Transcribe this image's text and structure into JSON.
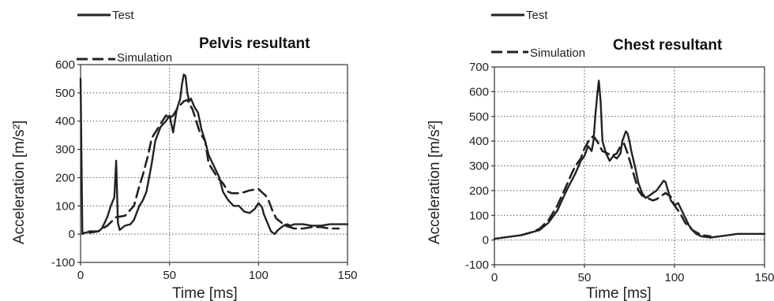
{
  "chart_data": [
    {
      "type": "line",
      "title": "Pelvis resultant",
      "xlabel": "Time [ms]",
      "ylabel": "Acceleration [m/s²]",
      "xlim": [
        0,
        150
      ],
      "ylim": [
        -100,
        600
      ],
      "xticks": [
        0,
        50,
        100,
        150
      ],
      "yticks": [
        -100,
        0,
        100,
        200,
        300,
        400,
        500,
        600
      ],
      "xtick_labels": [
        "0",
        "50",
        "100",
        "150"
      ],
      "ytick_labels": [
        "-100",
        "0",
        "100",
        "200",
        "300",
        "400",
        "500",
        "600"
      ],
      "grid": true,
      "legend_position": "top-left, outside",
      "series": [
        {
          "name": "Test",
          "style": "solid",
          "x": [
            0,
            1,
            2,
            3,
            5,
            10,
            12,
            15,
            17,
            19,
            20,
            21,
            22,
            23,
            25,
            28,
            30,
            33,
            35,
            37,
            40,
            42,
            45,
            48,
            50,
            52,
            54,
            56,
            57,
            58,
            59,
            60,
            61,
            62,
            64,
            66,
            68,
            70,
            72,
            75,
            78,
            80,
            83,
            86,
            89,
            92,
            95,
            98,
            100,
            102,
            103,
            105,
            107,
            109,
            111,
            114,
            116,
            118,
            120,
            125,
            130,
            135,
            140,
            145,
            150
          ],
          "y": [
            550,
            0,
            5,
            5,
            10,
            10,
            20,
            60,
            100,
            130,
            260,
            40,
            15,
            20,
            30,
            35,
            50,
            100,
            120,
            150,
            250,
            330,
            380,
            400,
            420,
            360,
            440,
            480,
            530,
            565,
            560,
            500,
            470,
            480,
            450,
            430,
            370,
            330,
            280,
            240,
            200,
            150,
            120,
            100,
            100,
            80,
            75,
            90,
            110,
            95,
            70,
            40,
            10,
            0,
            15,
            30,
            35,
            30,
            35,
            35,
            30,
            30,
            35,
            35,
            35
          ]
        },
        {
          "name": "Simulation",
          "style": "dashed",
          "x": [
            5,
            10,
            15,
            20,
            25,
            30,
            33,
            35,
            38,
            40,
            43,
            45,
            48,
            50,
            52,
            55,
            58,
            60,
            63,
            65,
            67,
            70,
            72,
            75,
            77,
            80,
            83,
            85,
            90,
            95,
            100,
            105,
            108,
            110,
            115,
            120,
            125,
            130,
            135,
            140,
            145
          ],
          "y": [
            5,
            10,
            30,
            60,
            65,
            100,
            170,
            210,
            280,
            340,
            370,
            390,
            420,
            410,
            420,
            450,
            470,
            475,
            440,
            400,
            360,
            330,
            250,
            220,
            200,
            180,
            150,
            145,
            145,
            155,
            160,
            130,
            80,
            55,
            30,
            20,
            20,
            25,
            25,
            20,
            20
          ]
        }
      ]
    },
    {
      "type": "line",
      "title": "Chest resultant",
      "xlabel": "Time [ms]",
      "ylabel": "Acceleration [m/s²]",
      "xlim": [
        0,
        150
      ],
      "ylim": [
        -100,
        700
      ],
      "xticks": [
        0,
        50,
        100,
        150
      ],
      "yticks": [
        -100,
        0,
        100,
        200,
        300,
        400,
        500,
        600,
        700
      ],
      "xtick_labels": [
        "0",
        "50",
        "100",
        "150"
      ],
      "ytick_labels": [
        "-100",
        "0",
        "100",
        "200",
        "300",
        "400",
        "500",
        "600",
        "700"
      ],
      "grid": true,
      "legend_position": "top-left, outside",
      "series": [
        {
          "name": "Test",
          "style": "solid",
          "x": [
            0,
            5,
            10,
            15,
            20,
            25,
            30,
            35,
            40,
            45,
            48,
            50,
            52,
            54,
            55,
            56,
            57,
            58,
            59,
            60,
            62,
            64,
            66,
            68,
            70,
            71,
            72,
            73,
            74,
            75,
            76,
            78,
            80,
            82,
            84,
            86,
            88,
            90,
            92,
            94,
            95,
            96,
            98,
            100,
            102,
            104,
            106,
            108,
            110,
            112,
            115,
            120,
            125,
            130,
            135,
            140,
            145,
            150
          ],
          "y": [
            5,
            10,
            15,
            20,
            30,
            40,
            70,
            120,
            200,
            270,
            320,
            340,
            380,
            360,
            400,
            500,
            580,
            645,
            560,
            400,
            350,
            320,
            340,
            330,
            350,
            400,
            420,
            440,
            430,
            400,
            360,
            300,
            230,
            190,
            170,
            180,
            190,
            200,
            220,
            240,
            235,
            210,
            160,
            140,
            150,
            120,
            90,
            60,
            40,
            25,
            15,
            10,
            15,
            20,
            25,
            25,
            25,
            25
          ]
        },
        {
          "name": "Simulation",
          "style": "dashed",
          "x": [
            15,
            20,
            25,
            30,
            35,
            40,
            43,
            45,
            48,
            50,
            53,
            55,
            57,
            60,
            63,
            65,
            68,
            70,
            72,
            74,
            76,
            78,
            80,
            82,
            85,
            88,
            90,
            92,
            95,
            98,
            100,
            103,
            106,
            110,
            115,
            120
          ],
          "y": [
            20,
            30,
            45,
            80,
            140,
            220,
            270,
            300,
            330,
            370,
            410,
            420,
            400,
            360,
            350,
            340,
            350,
            380,
            390,
            350,
            300,
            250,
            200,
            180,
            170,
            160,
            165,
            175,
            190,
            175,
            140,
            110,
            70,
            40,
            20,
            15
          ]
        }
      ]
    }
  ]
}
